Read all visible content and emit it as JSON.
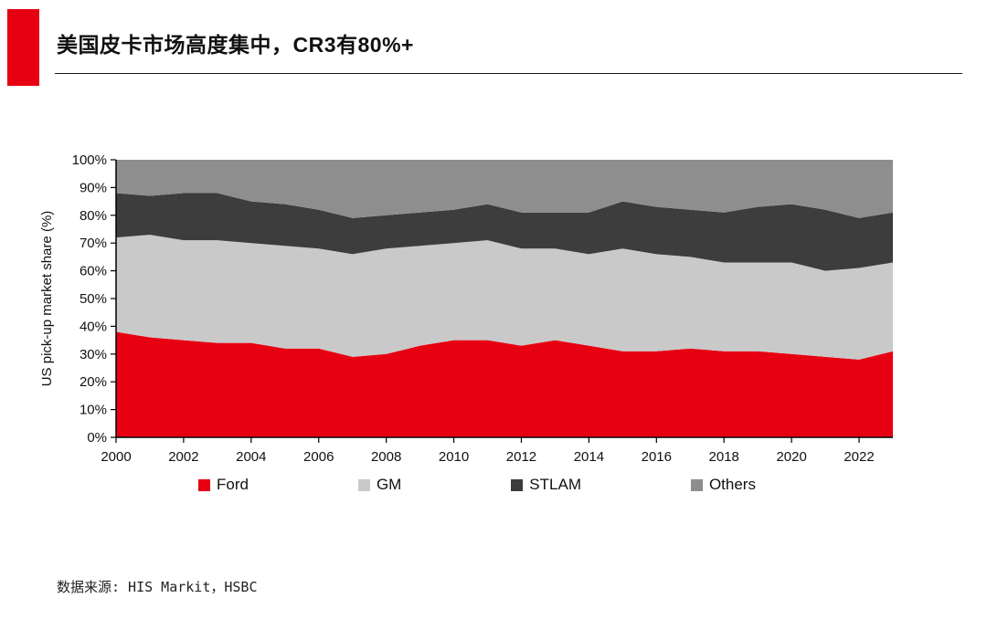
{
  "page": {
    "title": "美国皮卡市场高度集中，CR3有80%+",
    "source": "数据来源: HIS Markit，HSBC",
    "accent_color": "#e60012"
  },
  "chart_data": {
    "type": "area",
    "stacked": true,
    "title": "美国皮卡市场高度集中，CR3有80%+",
    "xlabel": "",
    "ylabel": "US pick-up market share (%)",
    "ylim": [
      0,
      100
    ],
    "ytick_step": 10,
    "xtick_step": 2,
    "grid": false,
    "legend_position": "bottom",
    "x": [
      2000,
      2001,
      2002,
      2003,
      2004,
      2005,
      2006,
      2007,
      2008,
      2009,
      2010,
      2011,
      2012,
      2013,
      2014,
      2015,
      2016,
      2017,
      2018,
      2019,
      2020,
      2021,
      2022,
      2023
    ],
    "series": [
      {
        "name": "Ford",
        "color": "#e60012",
        "values": [
          38,
          36,
          35,
          34,
          34,
          32,
          32,
          29,
          30,
          33,
          35,
          35,
          33,
          35,
          33,
          31,
          31,
          32,
          31,
          31,
          30,
          29,
          28,
          31
        ]
      },
      {
        "name": "GM",
        "color": "#c9c9c9",
        "values": [
          34,
          37,
          36,
          37,
          36,
          37,
          36,
          37,
          38,
          36,
          35,
          36,
          35,
          33,
          33,
          37,
          35,
          33,
          32,
          32,
          33,
          31,
          33,
          32
        ]
      },
      {
        "name": "STLAM",
        "color": "#3d3d3d",
        "values": [
          16,
          14,
          17,
          17,
          15,
          15,
          14,
          13,
          12,
          12,
          12,
          13,
          13,
          13,
          15,
          17,
          17,
          17,
          18,
          20,
          21,
          22,
          18,
          18
        ]
      },
      {
        "name": "Others",
        "color": "#8e8e8e",
        "values": [
          12,
          13,
          12,
          12,
          15,
          16,
          18,
          21,
          20,
          19,
          18,
          16,
          19,
          19,
          19,
          15,
          17,
          18,
          19,
          17,
          16,
          18,
          21,
          19
        ]
      }
    ]
  }
}
